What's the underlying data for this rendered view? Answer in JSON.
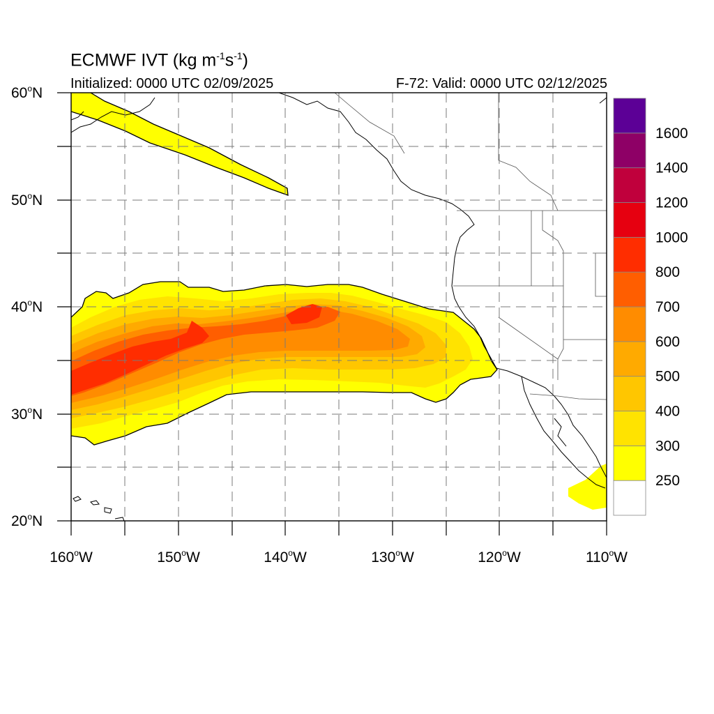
{
  "title": {
    "main_prefix": "ECMWF IVT (kg m",
    "exp1": "-1",
    "middle": "s",
    "exp2": "-1",
    "suffix": ")",
    "initialized": "Initialized: 0000 UTC 02/09/2025",
    "valid": "F-72: Valid: 0000 UTC 02/12/2025"
  },
  "map": {
    "projection": "cylindrical-equidistant",
    "lon_range": [
      -160,
      -110
    ],
    "lat_range": [
      20,
      60
    ],
    "grid": "dashed, 5 degree",
    "background": "#ffffff"
  },
  "axes": {
    "lat_labels": [
      {
        "value": 60,
        "text": "60",
        "hemi": "N"
      },
      {
        "value": 50,
        "text": "50",
        "hemi": "N"
      },
      {
        "value": 40,
        "text": "40",
        "hemi": "N"
      },
      {
        "value": 30,
        "text": "30",
        "hemi": "N"
      },
      {
        "value": 20,
        "text": "20",
        "hemi": "N"
      }
    ],
    "lon_labels": [
      {
        "value": -160,
        "text": "160",
        "hemi": "W"
      },
      {
        "value": -150,
        "text": "150",
        "hemi": "W"
      },
      {
        "value": -140,
        "text": "140",
        "hemi": "W"
      },
      {
        "value": -130,
        "text": "130",
        "hemi": "W"
      },
      {
        "value": -120,
        "text": "120",
        "hemi": "W"
      },
      {
        "value": -110,
        "text": "110",
        "hemi": "W"
      }
    ]
  },
  "colorbar": {
    "labels": [
      "250",
      "300",
      "400",
      "500",
      "600",
      "700",
      "800",
      "1000",
      "1200",
      "1400",
      "1600"
    ],
    "colors": [
      "#ffffff",
      "#ffff00",
      "#ffe300",
      "#ffc600",
      "#ffaa00",
      "#ff8c00",
      "#ff5e00",
      "#ff2d00",
      "#e60010",
      "#c0003c",
      "#8e0066",
      "#5c0096"
    ]
  },
  "ivt_colors": {
    "c250": "#ffff00",
    "c300": "#ffe300",
    "c400": "#ffc600",
    "c500": "#ffaa00",
    "c600": "#ff8c00",
    "c700": "#ff5e00",
    "c800": "#ff2d00"
  }
}
